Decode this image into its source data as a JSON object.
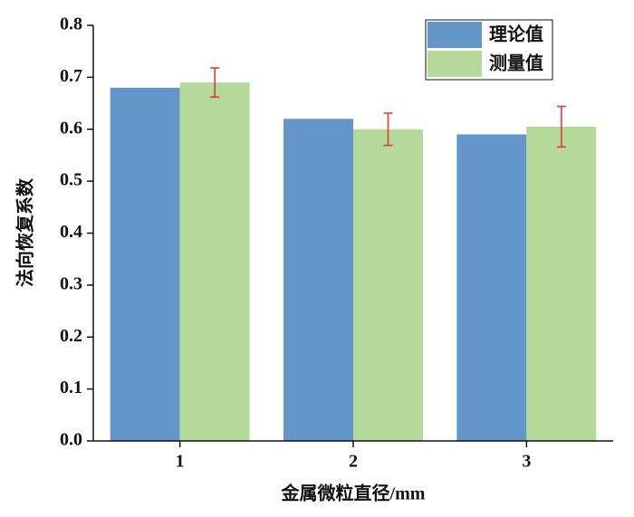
{
  "chart_data": {
    "type": "bar",
    "categories": [
      "1",
      "2",
      "3"
    ],
    "series": [
      {
        "name": "理论值",
        "color": "#6395c9",
        "values": [
          0.68,
          0.62,
          0.59
        ]
      },
      {
        "name": "测量值",
        "color": "#b5d89b",
        "values": [
          0.69,
          0.6,
          0.605
        ],
        "errors": [
          0.028,
          0.031,
          0.039
        ],
        "error_color": "#e03c31"
      }
    ],
    "x_label": "金属微粒直径/mm",
    "y_label": "法向恢复系数",
    "ylim": [
      0,
      0.8
    ],
    "yticks": [
      {
        "value": 0,
        "label": "0.0"
      },
      0.1,
      0.2,
      0.3,
      0.4,
      0.5,
      0.6,
      0.7,
      0.8
    ],
    "legend": "upper right"
  }
}
